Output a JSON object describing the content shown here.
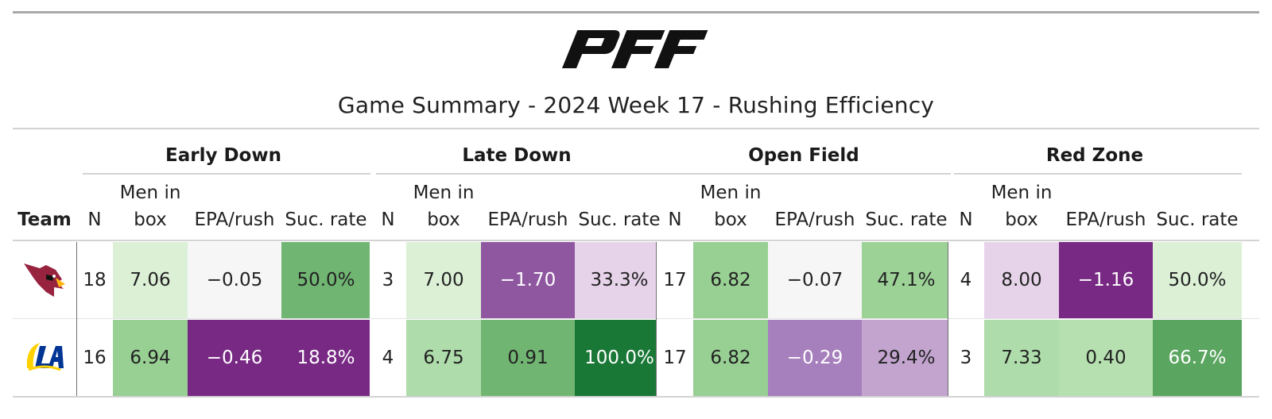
{
  "title": "Game Summary - 2024 Week 17 - Rushing Efficiency",
  "logo_text": "PFF",
  "colors": {
    "rule": "#d3d3d3",
    "cardinals_red": "#97233f",
    "rams_blue": "#003594",
    "rams_gold": "#ffd100"
  },
  "chart_data": {
    "type": "table",
    "title": "Game Summary - 2024 Week 17 - Rushing Efficiency",
    "team_header": "Team",
    "groups": [
      "Early Down",
      "Late Down",
      "Open Field",
      "Red Zone"
    ],
    "subcolumns": [
      {
        "key": "n",
        "label_lines": [
          "N"
        ]
      },
      {
        "key": "box",
        "label_lines": [
          "Men in",
          "box"
        ]
      },
      {
        "key": "epa",
        "label_lines": [
          "EPA/rush"
        ]
      },
      {
        "key": "suc",
        "label_lines": [
          "Suc. rate"
        ]
      }
    ],
    "rows": [
      {
        "team_icon": "arizona-cardinals-logo-icon",
        "groups": [
          {
            "n": "18",
            "box": "7.06",
            "epa": "−0.05",
            "suc": "50.0%",
            "colors": {
              "box": "#dcf0d6",
              "epa": "#f6f6f6",
              "suc": "#71b573"
            },
            "text": {
              "box": "#222222",
              "epa": "#222222",
              "suc": "#222222"
            }
          },
          {
            "n": "3",
            "box": "7.00",
            "epa": "−1.70",
            "suc": "33.3%",
            "colors": {
              "box": "#dcf0d6",
              "epa": "#8f57a0",
              "suc": "#e6d3e9"
            },
            "text": {
              "box": "#222222",
              "epa": "#ffffff",
              "suc": "#222222"
            }
          },
          {
            "n": "17",
            "box": "6.82",
            "epa": "−0.07",
            "suc": "47.1%",
            "colors": {
              "box": "#98cf93",
              "epa": "#f6f6f6",
              "suc": "#9dd297"
            },
            "text": {
              "box": "#222222",
              "epa": "#222222",
              "suc": "#222222"
            }
          },
          {
            "n": "4",
            "box": "8.00",
            "epa": "−1.16",
            "suc": "50.0%",
            "colors": {
              "box": "#e6d3e9",
              "epa": "#772983",
              "suc": "#dcf0d6"
            },
            "text": {
              "box": "#222222",
              "epa": "#ffffff",
              "suc": "#222222"
            }
          }
        ]
      },
      {
        "team_icon": "los-angeles-rams-logo-icon",
        "groups": [
          {
            "n": "16",
            "box": "6.94",
            "epa": "−0.46",
            "suc": "18.8%",
            "colors": {
              "box": "#98cf93",
              "epa": "#772983",
              "suc": "#772983"
            },
            "text": {
              "box": "#222222",
              "epa": "#ffffff",
              "suc": "#ffffff"
            }
          },
          {
            "n": "4",
            "box": "6.75",
            "epa": "0.91",
            "suc": "100.0%",
            "colors": {
              "box": "#aedcaa",
              "epa": "#71b573",
              "suc": "#1a7837"
            },
            "text": {
              "box": "#222222",
              "epa": "#222222",
              "suc": "#ffffff"
            }
          },
          {
            "n": "17",
            "box": "6.82",
            "epa": "−0.29",
            "suc": "29.4%",
            "colors": {
              "box": "#98cf93",
              "epa": "#a67fbd",
              "suc": "#c2a4cf"
            },
            "text": {
              "box": "#222222",
              "epa": "#ffffff",
              "suc": "#222222"
            }
          },
          {
            "n": "3",
            "box": "7.33",
            "epa": "0.40",
            "suc": "66.7%",
            "colors": {
              "box": "#aedcaa",
              "epa": "#b7e0b1",
              "suc": "#5aa55f"
            },
            "text": {
              "box": "#222222",
              "epa": "#222222",
              "suc": "#ffffff"
            }
          }
        ]
      }
    ]
  }
}
